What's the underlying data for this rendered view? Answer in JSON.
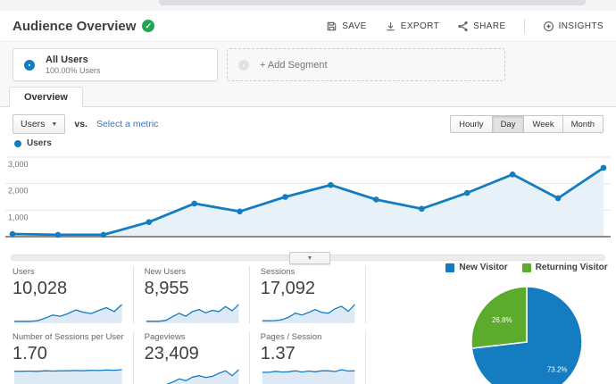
{
  "header": {
    "title": "Audience Overview",
    "toolbar": {
      "save": "SAVE",
      "export": "EXPORT",
      "share": "SHARE",
      "insights": "INSIGHTS"
    }
  },
  "segments": {
    "all_users": {
      "title": "All Users",
      "subtitle": "100.00% Users"
    },
    "add_label": "+ Add Segment"
  },
  "tabs": [
    "Overview"
  ],
  "controls": {
    "metric_selector": "Users",
    "vs_label": "vs.",
    "compare_link": "Select a metric",
    "granularity": [
      "Hourly",
      "Day",
      "Week",
      "Month"
    ],
    "granularity_active": "Day"
  },
  "metrics": [
    {
      "label": "Users",
      "value": "10,028"
    },
    {
      "label": "New Users",
      "value": "8,955"
    },
    {
      "label": "Sessions",
      "value": "17,092"
    },
    {
      "label": "Number of Sessions per User",
      "value": "1.70"
    },
    {
      "label": "Pageviews",
      "value": "23,409"
    },
    {
      "label": "Pages / Session",
      "value": "1.37"
    }
  ],
  "chart_data": [
    {
      "type": "line",
      "name": "users-over-time",
      "title": "Users",
      "series": [
        {
          "name": "Users",
          "values": [
            100,
            70,
            70,
            550,
            1250,
            950,
            1500,
            1950,
            1400,
            1050,
            1650,
            2350,
            1450,
            2600
          ]
        }
      ],
      "x_unit": "day",
      "ylim": [
        0,
        3000
      ],
      "yticks": [
        1000,
        2000,
        3000
      ],
      "ytick_labels": [
        "1,000",
        "2,000",
        "3,000"
      ],
      "grid": true,
      "legend_position": "top-left"
    },
    {
      "type": "line",
      "name": "users-sparkline",
      "values": [
        1,
        1,
        1,
        1.3,
        2.6,
        4.2,
        3.6,
        5,
        6.8,
        5.6,
        5,
        6.6,
        8,
        6,
        9.6
      ]
    },
    {
      "type": "line",
      "name": "new-users-sparkline",
      "values": [
        1,
        1,
        1,
        1.4,
        3.2,
        4.8,
        3.4,
        5.6,
        6.6,
        5,
        6.2,
        5.6,
        8,
        6,
        9
      ]
    },
    {
      "type": "line",
      "name": "sessions-sparkline",
      "values": [
        1.4,
        1.4,
        1.5,
        2,
        3.4,
        5.6,
        4.6,
        6,
        7.6,
        6,
        5.6,
        8,
        9.4,
        6.6,
        10.4
      ]
    },
    {
      "type": "line",
      "name": "sessions-per-user-sparkline",
      "values": [
        6.4,
        6.4,
        6.5,
        6.4,
        6.6,
        6.5,
        6.6,
        6.6,
        6.7,
        6.6,
        6.8,
        6.7,
        6.9,
        6.8,
        7
      ]
    },
    {
      "type": "line",
      "name": "pageviews-sparkline",
      "values": [
        1.4,
        1.4,
        1.8,
        2.2,
        3.6,
        5.4,
        4.4,
        6.4,
        7.2,
        6.2,
        6.8,
        8.6,
        10,
        7.2,
        10.6
      ]
    },
    {
      "type": "line",
      "name": "pages-per-session-sparkline",
      "values": [
        6.2,
        6.2,
        6.6,
        6.3,
        6.4,
        6.8,
        6.3,
        6.7,
        6.4,
        6.8,
        6.8,
        6.5,
        7.2,
        6.7,
        6.8
      ]
    },
    {
      "type": "pie",
      "name": "visitor-type-pie",
      "labels": [
        "New Visitor",
        "Returning Visitor"
      ],
      "values": [
        73.2,
        26.8
      ],
      "value_labels": [
        "73.2%",
        "26.8%"
      ],
      "colors": [
        "#147cc0",
        "#5cab2c"
      ],
      "legend_position": "top"
    }
  ],
  "colors": {
    "accent_blue": "#147cc0",
    "chart_fill": "#e8f1f8",
    "spark_fill": "#ddeaf5",
    "green": "#5cab2c",
    "link_blue": "#3a74c4",
    "badge_green": "#23a455",
    "gridline": "#e6e6e6",
    "baseline": "#8c8c8c"
  }
}
